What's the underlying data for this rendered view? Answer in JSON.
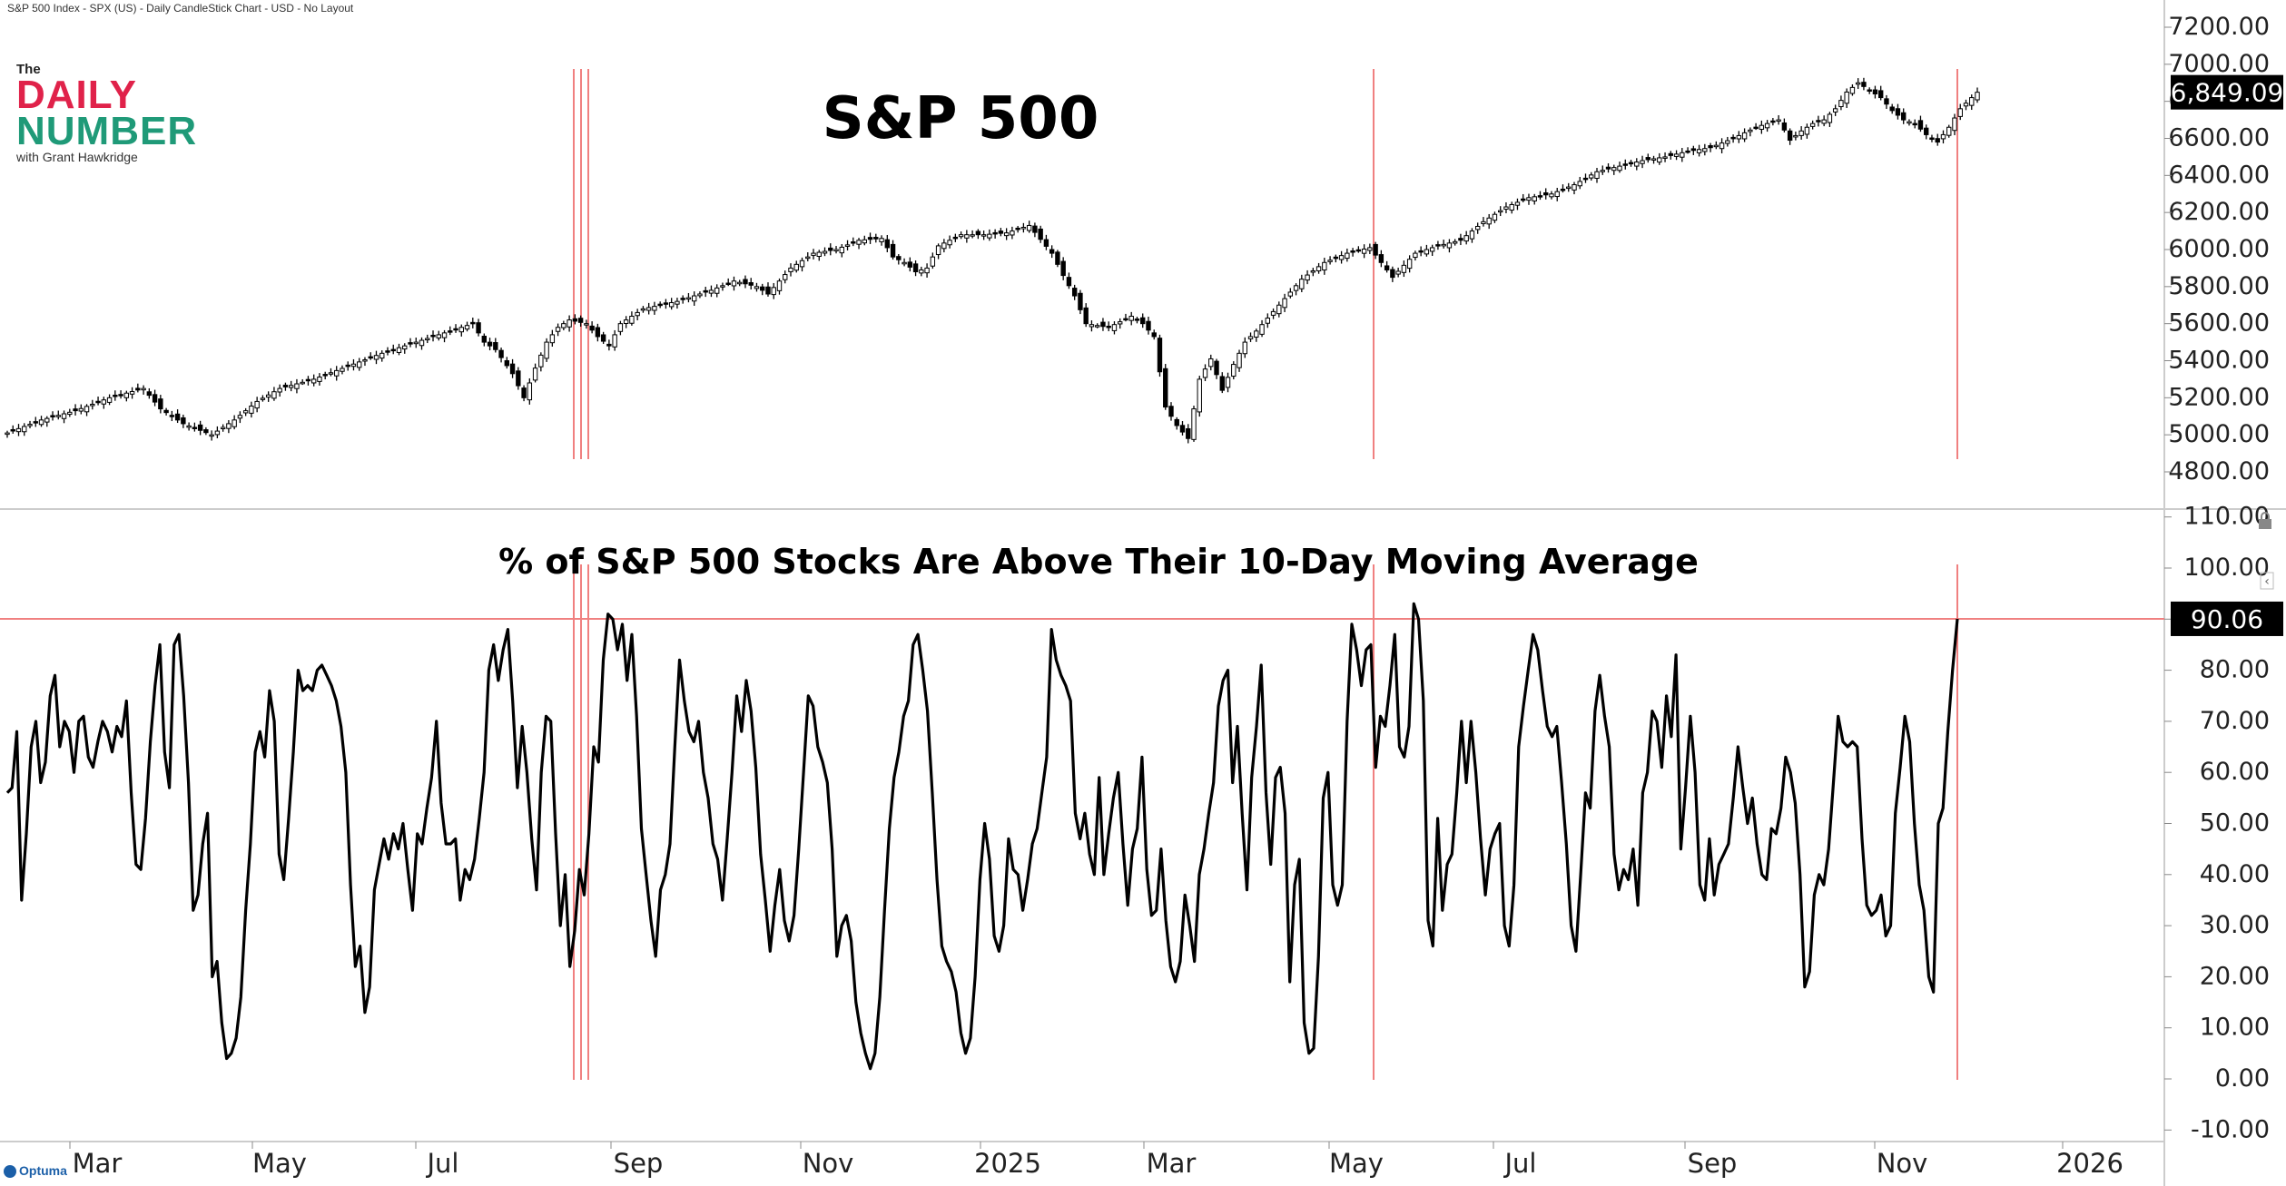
{
  "header": {
    "info": "S&P 500 Index - SPX (US) - Daily CandleStick Chart - USD - No Layout"
  },
  "logo": {
    "the": "The",
    "daily": "DAILY",
    "number": "NUMBER",
    "sub": "with Grant Hawkridge"
  },
  "brand": {
    "name": "Optuma"
  },
  "colors": {
    "accent": "#f08080",
    "line": "#000000",
    "daily_red": "#e0224a",
    "number_green": "#1f9a78"
  },
  "chart_data": [
    {
      "type": "candlestick",
      "title": "S&P 500",
      "ylim": [
        4700,
        7250
      ],
      "y_ticks": [
        "7200.00",
        "7000.00",
        "6800.00",
        "6600.00",
        "6400.00",
        "6200.00",
        "6000.00",
        "5800.00",
        "5600.00",
        "5400.00",
        "5200.00",
        "5000.00",
        "4800.00"
      ],
      "last_value_label": "6,849.09",
      "series_close_path": [
        [
          0,
          5010
        ],
        [
          6,
          5080
        ],
        [
          12,
          5130
        ],
        [
          18,
          5200
        ],
        [
          24,
          5250
        ],
        [
          27,
          5140
        ],
        [
          31,
          5060
        ],
        [
          36,
          5000
        ],
        [
          40,
          5080
        ],
        [
          44,
          5180
        ],
        [
          48,
          5250
        ],
        [
          54,
          5300
        ],
        [
          60,
          5370
        ],
        [
          66,
          5440
        ],
        [
          72,
          5500
        ],
        [
          78,
          5560
        ],
        [
          82,
          5600
        ],
        [
          84,
          5500
        ],
        [
          86,
          5460
        ],
        [
          89,
          5330
        ],
        [
          91,
          5200
        ],
        [
          93,
          5360
        ],
        [
          95,
          5500
        ],
        [
          97,
          5580
        ],
        [
          99,
          5620
        ],
        [
          102,
          5600
        ],
        [
          104,
          5530
        ],
        [
          106,
          5480
        ],
        [
          108,
          5600
        ],
        [
          112,
          5680
        ],
        [
          118,
          5720
        ],
        [
          124,
          5780
        ],
        [
          128,
          5830
        ],
        [
          132,
          5800
        ],
        [
          134,
          5760
        ],
        [
          138,
          5900
        ],
        [
          142,
          5980
        ],
        [
          146,
          6000
        ],
        [
          150,
          6050
        ],
        [
          154,
          6060
        ],
        [
          156,
          5960
        ],
        [
          158,
          5930
        ],
        [
          160,
          5880
        ],
        [
          162,
          5900
        ],
        [
          164,
          6020
        ],
        [
          168,
          6080
        ],
        [
          172,
          6080
        ],
        [
          176,
          6090
        ],
        [
          180,
          6130
        ],
        [
          184,
          5980
        ],
        [
          186,
          5860
        ],
        [
          188,
          5750
        ],
        [
          190,
          5600
        ],
        [
          194,
          5580
        ],
        [
          198,
          5640
        ],
        [
          200,
          5600
        ],
        [
          202,
          5530
        ],
        [
          204,
          5150
        ],
        [
          206,
          5050
        ],
        [
          208,
          4980
        ],
        [
          210,
          5300
        ],
        [
          212,
          5410
        ],
        [
          214,
          5240
        ],
        [
          216,
          5380
        ],
        [
          218,
          5500
        ],
        [
          220,
          5560
        ],
        [
          224,
          5700
        ],
        [
          228,
          5840
        ],
        [
          232,
          5930
        ],
        [
          236,
          5980
        ],
        [
          240,
          6010
        ],
        [
          244,
          5850
        ],
        [
          248,
          5980
        ],
        [
          252,
          6020
        ],
        [
          256,
          6050
        ],
        [
          260,
          6150
        ],
        [
          264,
          6230
        ],
        [
          268,
          6280
        ],
        [
          272,
          6300
        ],
        [
          276,
          6350
        ],
        [
          280,
          6420
        ],
        [
          284,
          6450
        ],
        [
          288,
          6480
        ],
        [
          292,
          6500
        ],
        [
          296,
          6530
        ],
        [
          300,
          6550
        ],
        [
          304,
          6600
        ],
        [
          308,
          6660
        ],
        [
          312,
          6700
        ],
        [
          314,
          6590
        ],
        [
          316,
          6640
        ],
        [
          318,
          6680
        ],
        [
          320,
          6700
        ],
        [
          322,
          6760
        ],
        [
          324,
          6850
        ],
        [
          326,
          6900
        ],
        [
          328,
          6860
        ],
        [
          330,
          6820
        ],
        [
          332,
          6750
        ],
        [
          334,
          6700
        ],
        [
          336,
          6680
        ],
        [
          338,
          6620
        ],
        [
          340,
          6580
        ],
        [
          342,
          6660
        ],
        [
          344,
          6760
        ],
        [
          346,
          6820
        ],
        [
          347,
          6849
        ]
      ]
    },
    {
      "type": "line",
      "title": "% of S&P 500 Stocks Are Above Their 10-Day Moving Average",
      "ylim": [
        -10,
        110
      ],
      "y_ticks": [
        "110.00",
        "100.00",
        "90.00",
        "80.00",
        "70.00",
        "60.00",
        "50.00",
        "40.00",
        "30.00",
        "20.00",
        "10.00",
        "0.00",
        "-10.00"
      ],
      "reference_line": 90.06,
      "last_value_label": "90.06",
      "x_labels": [
        "Mar",
        "May",
        "Jul",
        "Sep",
        "Nov",
        "2025",
        "Mar",
        "May",
        "Jul",
        "Sep",
        "Nov",
        "2026"
      ],
      "values": [
        56,
        57,
        68,
        35,
        48,
        65,
        70,
        58,
        62,
        75,
        79,
        65,
        70,
        68,
        60,
        70,
        71,
        63,
        61,
        66,
        70,
        68,
        64,
        69,
        67,
        74,
        56,
        42,
        41,
        51,
        66,
        77,
        85,
        64,
        57,
        85,
        87,
        75,
        58,
        33,
        36,
        46,
        52,
        20,
        23,
        11,
        4,
        5,
        8,
        16,
        33,
        46,
        64,
        68,
        63,
        76,
        70,
        44,
        39,
        51,
        64,
        80,
        76,
        77,
        76,
        80,
        81,
        79,
        77,
        74,
        69,
        60,
        38,
        22,
        26,
        13,
        18,
        37,
        42,
        47,
        43,
        48,
        45,
        50,
        41,
        33,
        48,
        46,
        53,
        59,
        70,
        54,
        46,
        46,
        47,
        35,
        41,
        39,
        43,
        51,
        60,
        80,
        85,
        78,
        84,
        88,
        74,
        57,
        69,
        60,
        47,
        37,
        60,
        71,
        70,
        48,
        30,
        40,
        22,
        29,
        41,
        36,
        48,
        65,
        62,
        82,
        91,
        90,
        84,
        89,
        78,
        87,
        71,
        49,
        40,
        31,
        24,
        37,
        40,
        46,
        65,
        82,
        74,
        68,
        66,
        70,
        60,
        55,
        46,
        43,
        35,
        47,
        60,
        75,
        68,
        78,
        72,
        61,
        44,
        35,
        25,
        34,
        41,
        31,
        27,
        32,
        45,
        60,
        75,
        73,
        65,
        62,
        58,
        45,
        24,
        30,
        32,
        27,
        15,
        9,
        5,
        2,
        5,
        16,
        33,
        49,
        59,
        64,
        71,
        74,
        85,
        87,
        80,
        72,
        56,
        39,
        26,
        23,
        21,
        17,
        9,
        5,
        8,
        20,
        39,
        50,
        43,
        28,
        25,
        30,
        47,
        41,
        40,
        33,
        39,
        46,
        49,
        56,
        63,
        88,
        82,
        79,
        77,
        74,
        52,
        47,
        52,
        44,
        40,
        59,
        40,
        48,
        55,
        60,
        46,
        34,
        45,
        49,
        63,
        41,
        32,
        33,
        45,
        31,
        22,
        19,
        23,
        36,
        30,
        23,
        40,
        45,
        52,
        58,
        73,
        78,
        80,
        58,
        69,
        52,
        37,
        59,
        69,
        81,
        56,
        42,
        59,
        61,
        52,
        19,
        38,
        43,
        11,
        5,
        6,
        24,
        55,
        60,
        38,
        34,
        38,
        70,
        89,
        84,
        77,
        84,
        85,
        61,
        71,
        69,
        77,
        87,
        65,
        63,
        69,
        93,
        90,
        74,
        31,
        26,
        51,
        33,
        42,
        44,
        56,
        70,
        58,
        70,
        60,
        47,
        36,
        45,
        48,
        50,
        30,
        26,
        38,
        65,
        73,
        80,
        87,
        84,
        76,
        69,
        67,
        69,
        58,
        46,
        30,
        25,
        40,
        56,
        53,
        72,
        79,
        71,
        65,
        44,
        37,
        41,
        39,
        45,
        34,
        56,
        60,
        72,
        70,
        61,
        75,
        67,
        83,
        45,
        57,
        71,
        60,
        38,
        35,
        47,
        36,
        42,
        44,
        46,
        55,
        65,
        57,
        50,
        55,
        46,
        40,
        39,
        49,
        48,
        53,
        63,
        60,
        54,
        40,
        18,
        21,
        36,
        40,
        38,
        45,
        58,
        71,
        66,
        65,
        66,
        65,
        47,
        34,
        32,
        33,
        36,
        28,
        30,
        52,
        61,
        71,
        66,
        50,
        38,
        33,
        20,
        17,
        50,
        53,
        68,
        80,
        90.06
      ]
    }
  ]
}
